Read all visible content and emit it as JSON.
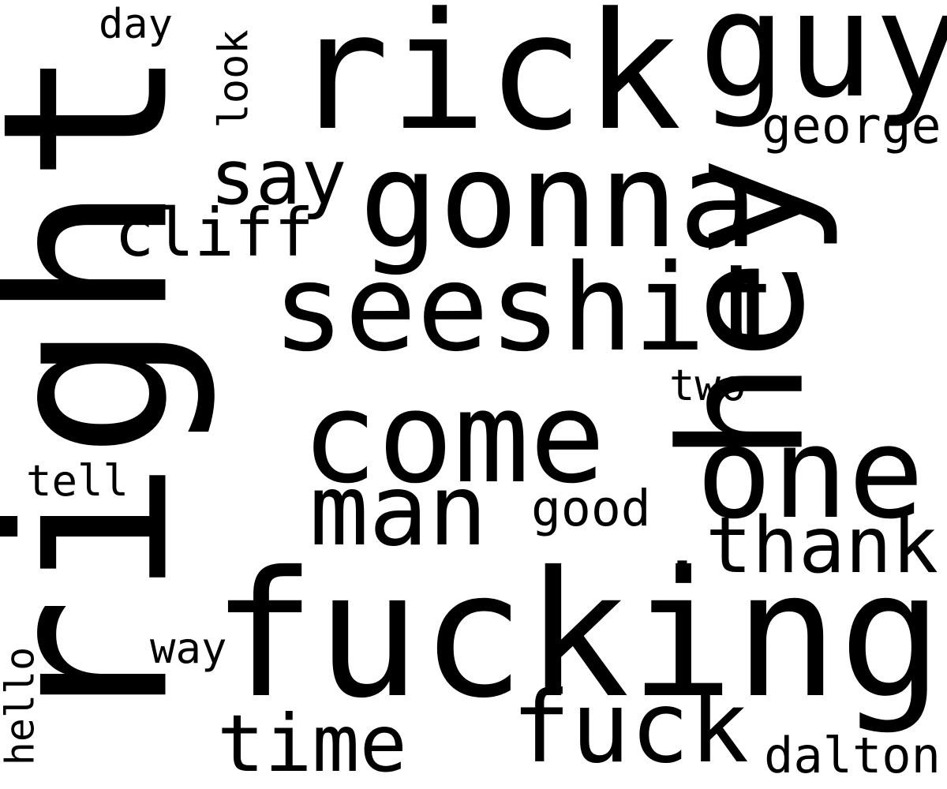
{
  "colors": {
    "background": "#ffffff",
    "text": "#000000"
  },
  "words": {
    "right": "right",
    "fucking": "fucking",
    "rick": "rick",
    "gonna": "gonna",
    "hey": "hey",
    "guy": "guy",
    "seeshit": "seeshit",
    "come": "come",
    "one": "one",
    "man": "man",
    "thank": ".thank",
    "fuck": "fuck",
    "time": "time",
    "say": "say",
    "cliff": "cliff",
    "george": "george",
    "look": "look",
    "day": "day",
    "two": "two",
    "good": "good",
    "tell": "tell",
    "way": "way",
    "hello": "hello",
    "dalton": "dalton"
  }
}
